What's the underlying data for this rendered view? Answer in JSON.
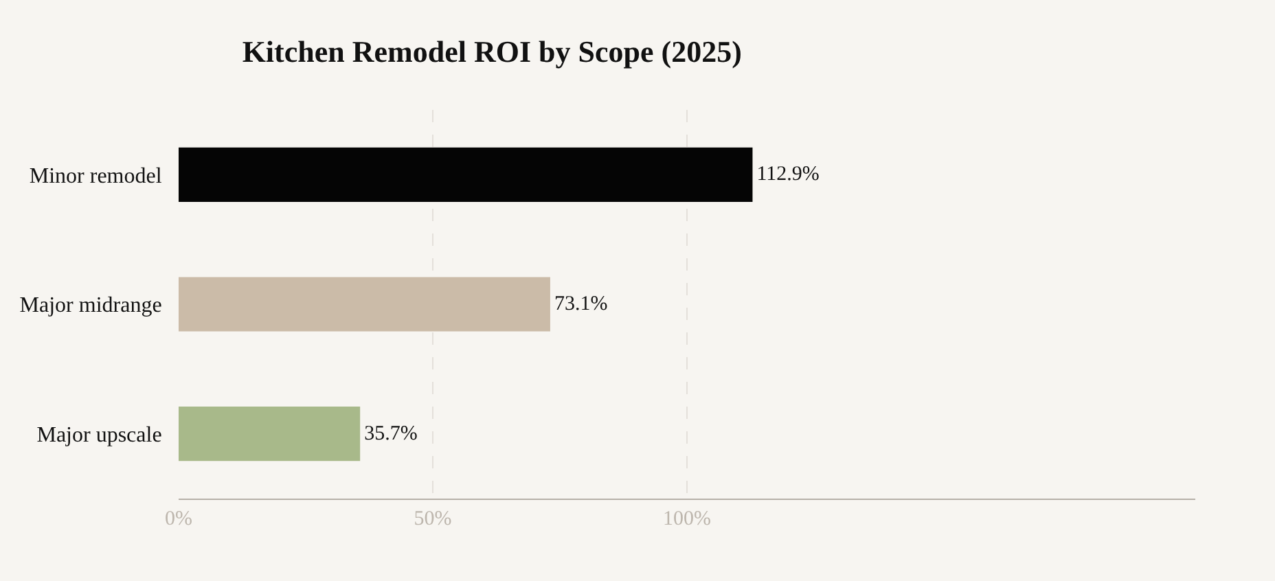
{
  "chart_data": {
    "type": "bar",
    "orientation": "horizontal",
    "title": "Kitchen Remodel ROI by Scope (2025)",
    "categories": [
      "Minor remodel",
      "Major midrange",
      "Major upscale"
    ],
    "values": [
      112.9,
      73.1,
      35.7
    ],
    "colors": [
      "#050505",
      "#cbbba8",
      "#a8b98a"
    ],
    "value_labels": [
      "112.9%",
      "73.1%",
      "35.7%"
    ],
    "xlim": [
      0,
      200
    ],
    "xticks": [
      {
        "value": 0,
        "label": "0%"
      },
      {
        "value": 50,
        "label": "50%"
      },
      {
        "value": 100,
        "label": "100%"
      }
    ],
    "grid": "x",
    "legend": false
  }
}
